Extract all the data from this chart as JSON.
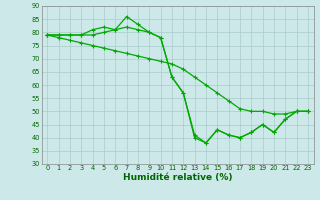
{
  "title": "",
  "xlabel": "Humidité relative (%)",
  "ylabel": "",
  "bg_color": "#cce8e8",
  "grid_color": "#aacccc",
  "line_color": "#00aa00",
  "marker_color": "#00aa00",
  "xlim_min": -0.5,
  "xlim_max": 23.5,
  "ylim_min": 30,
  "ylim_max": 90,
  "yticks": [
    30,
    35,
    40,
    45,
    50,
    55,
    60,
    65,
    70,
    75,
    80,
    85,
    90
  ],
  "xticks": [
    0,
    1,
    2,
    3,
    4,
    5,
    6,
    7,
    8,
    9,
    10,
    11,
    12,
    13,
    14,
    15,
    16,
    17,
    18,
    19,
    20,
    21,
    22,
    23
  ],
  "line1": [
    79,
    79,
    79,
    79,
    81,
    82,
    81,
    82,
    81,
    80,
    78,
    63,
    57,
    40,
    38,
    43,
    41,
    40,
    42,
    45,
    42,
    47,
    50,
    50
  ],
  "line2": [
    79,
    79,
    79,
    79,
    79,
    80,
    81,
    86,
    83,
    80,
    78,
    63,
    57,
    41,
    38,
    43,
    41,
    40,
    42,
    45,
    42,
    47,
    50,
    50
  ],
  "line3": [
    79,
    78,
    77,
    76,
    75,
    74,
    73,
    72,
    71,
    70,
    69,
    68,
    66,
    63,
    60,
    57,
    54,
    51,
    50,
    50,
    49,
    49,
    50,
    50
  ]
}
